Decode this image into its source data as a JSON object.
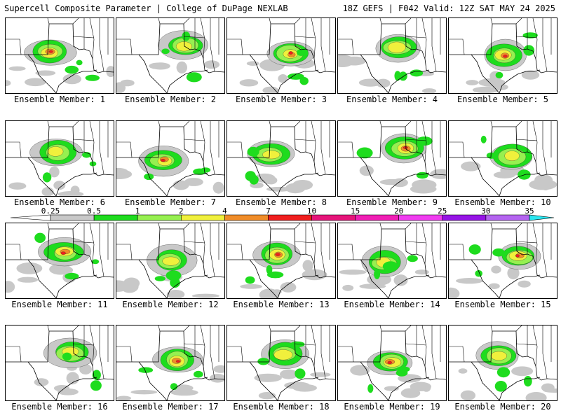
{
  "header": {
    "left": "Supercell Composite Parameter | College of DuPage NEXLAB",
    "right": "18Z GEFS | F042 Valid: 12Z SAT MAY 24 2025"
  },
  "member_label_prefix": "Ensemble Member: ",
  "members": [
    1,
    2,
    3,
    4,
    5,
    6,
    7,
    8,
    9,
    10,
    11,
    12,
    13,
    14,
    15,
    16,
    17,
    18,
    19,
    20
  ],
  "legend": {
    "labels": [
      "0.25",
      "0.5",
      "1",
      "2",
      "4",
      "7",
      "10",
      "15",
      "20",
      "25",
      "30",
      "35"
    ],
    "colors": [
      "#c8c8c8",
      "#1edc1e",
      "#96f050",
      "#f0f03c",
      "#f08c28",
      "#f01e1e",
      "#e6147a",
      "#f01eb4",
      "#f03cf0",
      "#9614e6",
      "#b464f0",
      "#28e6f0"
    ]
  },
  "colors": {
    "land": "#ffffff",
    "border": "#000000",
    "water": "#ffffff"
  }
}
